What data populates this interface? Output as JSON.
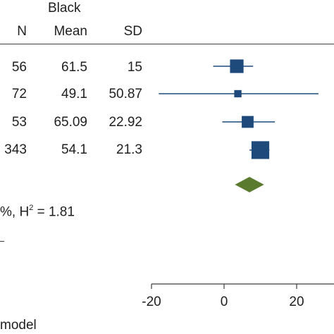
{
  "table": {
    "group_header": "Black",
    "columns": [
      "N",
      "Mean",
      "SD"
    ],
    "rows": [
      {
        "n": "56",
        "mean": "61.5",
        "sd": "15"
      },
      {
        "n": "72",
        "mean": "49.1",
        "sd": "50.87"
      },
      {
        "n": "53",
        "mean": "65.09",
        "sd": "22.92"
      },
      {
        "n": "343",
        "mean": "54.1",
        "sd": "21.3"
      }
    ],
    "heterogeneity_prefix": "%, H",
    "heterogeneity_sup": "2",
    "heterogeneity_suffix": " = 1.81",
    "footer_text": "model"
  },
  "chart_data": {
    "type": "forest",
    "x_ticks": [
      -20,
      0,
      20
    ],
    "x_tick_labels": [
      "-20",
      "0",
      "20"
    ],
    "xlim": [
      -20,
      20
    ],
    "studies": [
      {
        "estimate": 3.5,
        "ci_low": -3.0,
        "ci_high": 8.0,
        "weight": 0.55
      },
      {
        "estimate": 3.8,
        "ci_low": -18.0,
        "ci_high": 26.0,
        "weight": 0.18
      },
      {
        "estimate": 6.5,
        "ci_low": -0.5,
        "ci_high": 14.0,
        "weight": 0.45
      },
      {
        "estimate": 10.0,
        "ci_low": 7.0,
        "ci_high": 12.5,
        "weight": 0.8
      }
    ],
    "overall": {
      "estimate": 7.0,
      "ci_low": 3.0,
      "ci_high": 11.0
    },
    "colors": {
      "study": "#1d4a7a",
      "overall": "#5a7a2e",
      "axis": "#3c3c3c"
    }
  }
}
